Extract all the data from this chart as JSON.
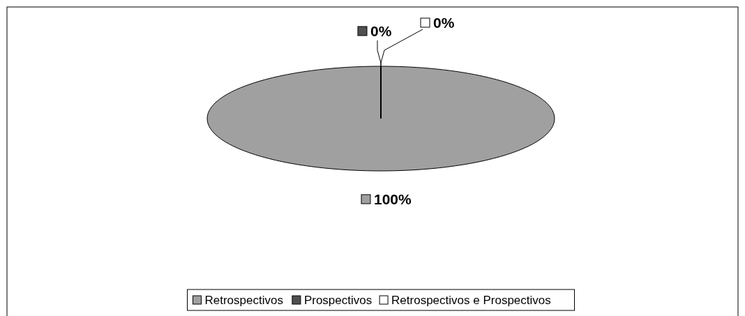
{
  "chart_data": {
    "type": "pie",
    "categories": [
      "Retrospectivos",
      "Prospectivos",
      "Retrospectivos e Prospectivos"
    ],
    "values": [
      100,
      0,
      0
    ],
    "colors": [
      "#a0a0a0",
      "#505050",
      "#ffffff"
    ],
    "value_labels": [
      "100%",
      "0%",
      "0%"
    ],
    "legend": "bottom"
  }
}
